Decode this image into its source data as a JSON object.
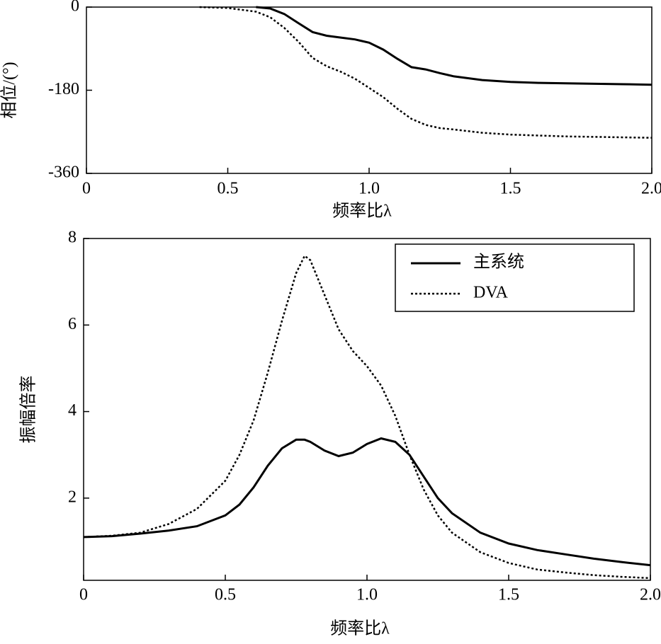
{
  "chart_data": [
    {
      "type": "line",
      "y_label": "相位/(°)",
      "x_label": "频率比λ",
      "x": [
        0.4,
        0.5,
        0.6,
        0.65,
        0.7,
        0.75,
        0.8,
        0.85,
        0.9,
        0.95,
        1.0,
        1.05,
        1.1,
        1.15,
        1.2,
        1.25,
        1.3,
        1.4,
        1.5,
        1.6,
        1.7,
        1.8,
        1.9,
        2.0
      ],
      "series": [
        {
          "name": "主系统",
          "color": "#000000",
          "style": "solid",
          "values": [
            null,
            null,
            0,
            -3,
            -15,
            -35,
            -54,
            -62,
            -66,
            -70,
            -77,
            -92,
            -112,
            -130,
            -135,
            -143,
            -150,
            -158,
            -162,
            -164,
            -165,
            -166,
            -167,
            -168
          ]
        },
        {
          "name": "DVA",
          "color": "#000000",
          "style": "dotted",
          "values": [
            0,
            -2,
            -10,
            -22,
            -45,
            -75,
            -110,
            -128,
            -140,
            -155,
            -175,
            -195,
            -220,
            -242,
            -255,
            -262,
            -265,
            -272,
            -276,
            -278,
            -280,
            -281,
            -282,
            -283
          ]
        }
      ],
      "xlim": [
        0,
        2
      ],
      "xticks": [
        0,
        0.5,
        {
          "value": 1,
          "label": "1.0"
        },
        1.5,
        {
          "value": 2,
          "label": "2.0"
        }
      ],
      "ylim": [
        -360,
        0
      ],
      "yticks": [
        -360,
        -180,
        0
      ]
    },
    {
      "type": "line",
      "y_label": "振幅倍率",
      "x_label": "频率比λ",
      "x": [
        0,
        0.1,
        0.2,
        0.3,
        0.4,
        0.5,
        0.55,
        0.6,
        0.65,
        0.7,
        0.75,
        0.78,
        0.8,
        0.85,
        0.9,
        0.95,
        1.0,
        1.05,
        1.1,
        1.15,
        1.2,
        1.25,
        1.3,
        1.4,
        1.5,
        1.6,
        1.7,
        1.8,
        1.9,
        2.0
      ],
      "series": [
        {
          "name": "主系统",
          "color": "#000000",
          "style": "solid",
          "values": [
            1.1,
            1.12,
            1.18,
            1.25,
            1.35,
            1.6,
            1.85,
            2.25,
            2.75,
            3.15,
            3.35,
            3.35,
            3.3,
            3.1,
            2.97,
            3.05,
            3.25,
            3.38,
            3.3,
            3.0,
            2.5,
            2.0,
            1.65,
            1.2,
            0.95,
            0.8,
            0.7,
            0.6,
            0.52,
            0.45
          ]
        },
        {
          "name": "DVA",
          "color": "#000000",
          "style": "dotted",
          "values": [
            1.1,
            1.13,
            1.2,
            1.4,
            1.75,
            2.4,
            3.0,
            3.8,
            4.9,
            6.1,
            7.2,
            7.6,
            7.5,
            6.7,
            5.9,
            5.4,
            5.05,
            4.6,
            3.9,
            3.0,
            2.2,
            1.6,
            1.2,
            0.75,
            0.5,
            0.35,
            0.28,
            0.22,
            0.18,
            0.15
          ]
        }
      ],
      "xlim": [
        0,
        2
      ],
      "xticks": [
        0,
        0.5,
        {
          "value": 1,
          "label": "1.0"
        },
        1.5,
        {
          "value": 2,
          "label": "2.0"
        }
      ],
      "ylim": [
        0.1,
        8
      ],
      "yticks": [
        2,
        4,
        6,
        8
      ],
      "legend": "upper right"
    }
  ]
}
